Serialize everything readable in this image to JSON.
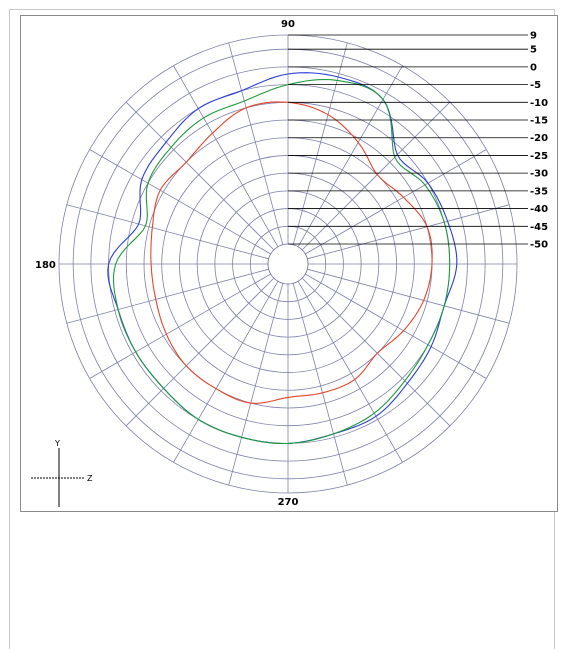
{
  "chart_data": {
    "type": "polar-line",
    "angle_labels": {
      "top": "90",
      "left": "180",
      "bottom": "270"
    },
    "radial_tick_labels": [
      "9",
      "5",
      "0",
      "-5",
      "-10",
      "-15",
      "-20",
      "-25",
      "-30",
      "-35",
      "-40",
      "-45",
      "-50"
    ],
    "radial_range": [
      -50,
      9
    ],
    "angle_grid_step_deg": 15,
    "grid": true,
    "series": [
      {
        "color": "#2a3fd6",
        "angles": [
          0,
          15,
          30,
          45,
          60,
          75,
          90,
          105,
          120,
          135,
          150,
          165,
          180,
          195,
          210,
          225,
          240,
          255,
          270,
          285,
          300,
          315,
          330,
          345
        ],
        "values": [
          -8,
          -9,
          -10,
          -12,
          -2,
          -1,
          -2,
          -5,
          -5,
          -7,
          -8,
          -12,
          -5,
          -6,
          -6,
          -6,
          -5,
          -5,
          -5,
          -6,
          -6,
          -8,
          -9,
          -10
        ]
      },
      {
        "color": "#1f9a3c",
        "angles": [
          0,
          15,
          30,
          45,
          60,
          75,
          90,
          105,
          120,
          135,
          150,
          165,
          180,
          195,
          210,
          225,
          240,
          255,
          270,
          285,
          300,
          315,
          330,
          345
        ],
        "values": [
          -10,
          -10,
          -11,
          -13,
          -2,
          -2,
          -5,
          -8,
          -8,
          -9,
          -10,
          -14,
          -7,
          -6,
          -6,
          -6,
          -5,
          -5,
          -5,
          -6,
          -7,
          -9,
          -10,
          -10
        ]
      },
      {
        "color": "#e8452a",
        "angles": [
          0,
          15,
          30,
          45,
          60,
          75,
          90,
          105,
          120,
          135,
          150,
          165,
          180,
          195,
          210,
          225,
          240,
          255,
          270,
          285,
          300,
          315,
          330,
          345
        ],
        "values": [
          -15,
          -15,
          -18,
          -20,
          -16,
          -12,
          -10,
          -10,
          -13,
          -15,
          -14,
          -16,
          -17,
          -17,
          -16,
          -15,
          -15,
          -15,
          -18,
          -18,
          -18,
          -20,
          -18,
          -16
        ]
      }
    ],
    "coordinate_glyph": {
      "vertical": "Y",
      "horizontal": "Z"
    }
  }
}
